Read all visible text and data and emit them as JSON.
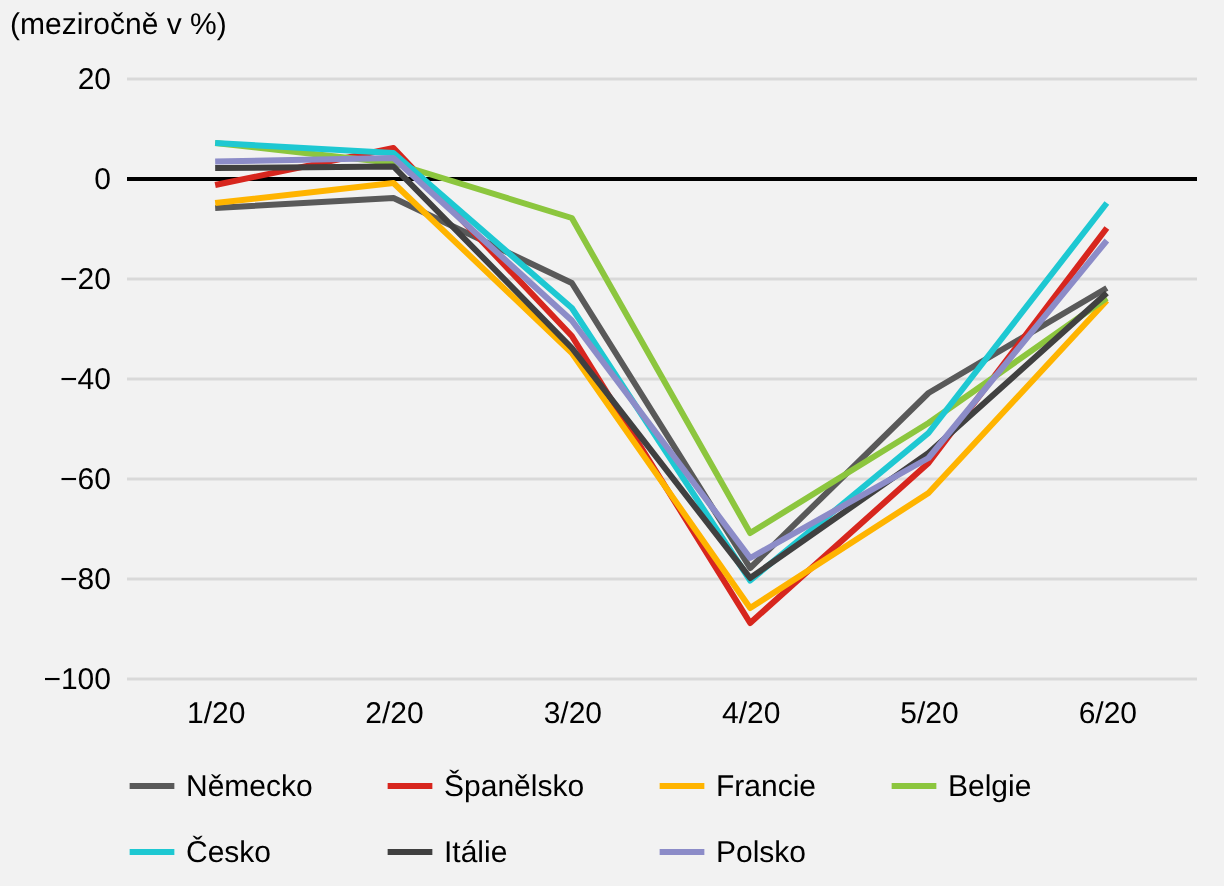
{
  "chart_data": {
    "type": "line",
    "ylabel": "(meziročně v %)",
    "categories": [
      "1/20",
      "2/20",
      "3/20",
      "4/20",
      "5/20",
      "6/20"
    ],
    "series": [
      {
        "name": "Německo",
        "color": "#595959",
        "values": [
          -6,
          -4,
          -21,
          -78,
          -43,
          -22
        ]
      },
      {
        "name": "Španělsko",
        "color": "#d7261e",
        "values": [
          -1.4,
          6,
          -31.6,
          -89,
          -57,
          -10
        ]
      },
      {
        "name": "Francie",
        "color": "#ffb400",
        "values": [
          -5,
          -1,
          -35,
          -86,
          -63,
          -24.5
        ]
      },
      {
        "name": "Belgie",
        "color": "#8cc63e",
        "values": [
          7,
          3,
          -8,
          -71,
          -49,
          -24
        ]
      },
      {
        "name": "Česko",
        "color": "#1ec8d2",
        "values": [
          7,
          5,
          -26,
          -80.5,
          -51,
          -5
        ]
      },
      {
        "name": "Itálie",
        "color": "#404040",
        "values": [
          2,
          2.3,
          -34,
          -80,
          -55,
          -23
        ]
      },
      {
        "name": "Polsko",
        "color": "#8c8cc8",
        "values": [
          3.3,
          4,
          -28.5,
          -76,
          -56,
          -12.5
        ]
      }
    ],
    "ylim": [
      -100,
      20
    ],
    "yticks": [
      -100,
      -80,
      -60,
      -40,
      -20,
      0,
      20
    ],
    "grid": "y",
    "legend": "bottom",
    "marker": "none",
    "line_style": "solid"
  }
}
